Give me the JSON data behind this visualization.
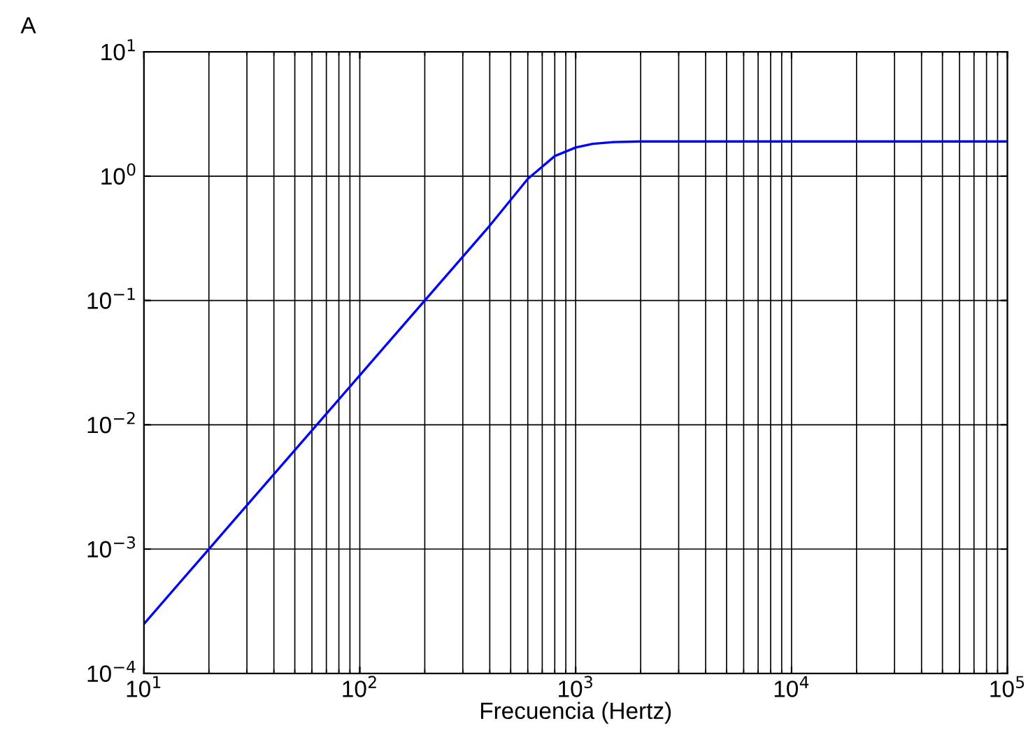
{
  "chart_data": {
    "type": "line",
    "xlabel": "Frecuencia (Hertz)",
    "annotations": [
      "A"
    ],
    "log": "xy",
    "grid": true,
    "x": [
      10,
      20,
      50,
      100,
      200,
      400,
      600,
      800,
      1000,
      1200,
      1500,
      2000,
      10000,
      100000
    ],
    "series": [
      {
        "color": "#0000ff",
        "values": [
          0.00025,
          0.001,
          0.00625,
          0.025,
          0.1,
          0.4,
          0.95,
          1.45,
          1.7,
          1.82,
          1.88,
          1.9,
          1.9,
          1.9
        ]
      }
    ],
    "xlim": [
      10,
      100000
    ],
    "ylim": [
      0.0001,
      10
    ],
    "xticks": [
      {
        "value": 10,
        "label": "10$^{1}$"
      },
      {
        "value": 100,
        "label": "10$^{2}$"
      },
      {
        "value": 1000,
        "label": "10$^{3}$"
      },
      {
        "value": 10000,
        "label": "10$^{4}$"
      },
      {
        "value": 100000,
        "label": "10$^{5}$"
      }
    ],
    "yticks": [
      {
        "value": 0.0001,
        "label": "10$^{−4}$"
      },
      {
        "value": 0.001,
        "label": "10$^{−3}$"
      },
      {
        "value": 0.01,
        "label": "10$^{−2}$"
      },
      {
        "value": 0.1,
        "label": "10$^{−1}$"
      },
      {
        "value": 1,
        "label": "10$^{0}$"
      },
      {
        "value": 10,
        "label": "10$^{1}$"
      }
    ]
  }
}
